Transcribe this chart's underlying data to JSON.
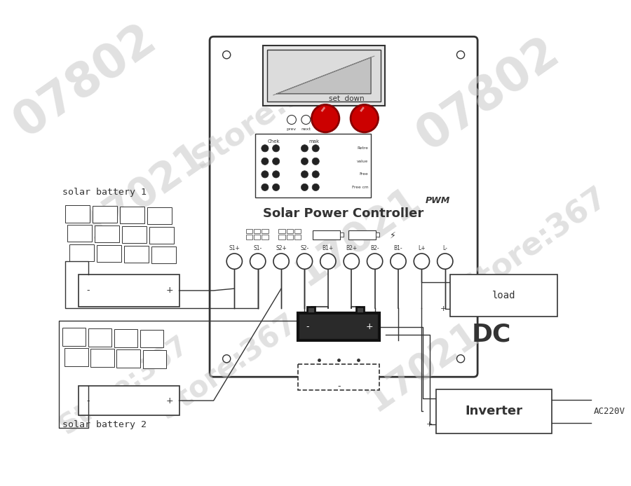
{
  "bg_color": "#ffffff",
  "lc": "#333333",
  "lw": 1.0,
  "fig_w": 9.0,
  "fig_h": 6.94,
  "controller_label": "Solar Power Controller",
  "pwm_label": "PWM",
  "load_label": "load",
  "dc_label": "DC",
  "inverter_label": "Inverter",
  "ac_label": "AC220V",
  "solar_label1": "solar battery 1",
  "solar_label2": "solar battery 2",
  "terminal_labels": [
    "S1+",
    "S1-",
    "S2+",
    "S2-",
    "B1+",
    "B2+",
    "B2-",
    "B1-",
    "L+",
    "L-"
  ]
}
